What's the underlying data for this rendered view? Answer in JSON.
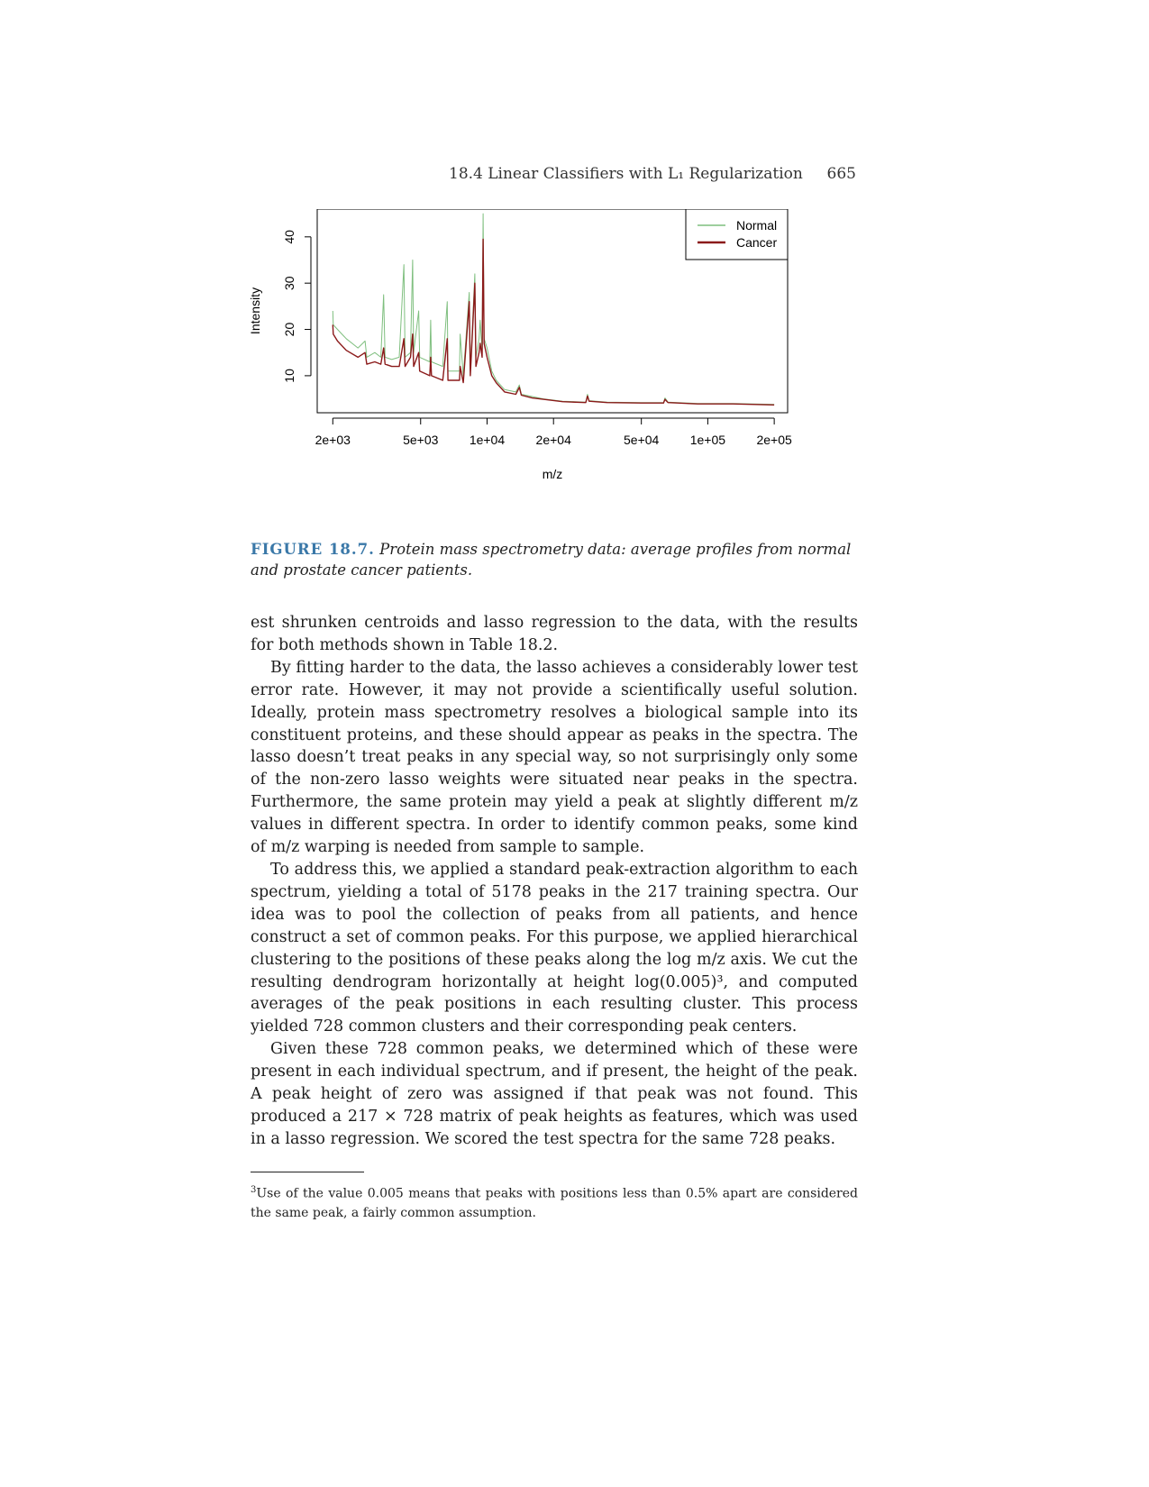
{
  "header": {
    "title": "18.4 Linear Classifiers with L₁ Regularization",
    "page_number": "665"
  },
  "chart_data": {
    "type": "line",
    "title": "",
    "xlabel": "m/z",
    "ylabel": "Intensity",
    "x_scale": "log",
    "x_ticks": [
      2000,
      5000,
      10000,
      20000,
      50000,
      100000,
      200000
    ],
    "x_tick_labels": [
      "2e+03",
      "5e+03",
      "1e+04",
      "2e+04",
      "5e+04",
      "1e+05",
      "2e+05"
    ],
    "y_ticks": [
      10,
      20,
      30,
      40
    ],
    "y_tick_labels": [
      "10",
      "20",
      "30",
      "40"
    ],
    "xlim": [
      1700,
      230000
    ],
    "ylim": [
      2,
      46
    ],
    "grid": false,
    "legend_position": "top-right",
    "series": [
      {
        "name": "Normal",
        "color": "#7fbf7f",
        "points": [
          [
            2000,
            24
          ],
          [
            2010,
            21
          ],
          [
            2100,
            20
          ],
          [
            2300,
            18
          ],
          [
            2600,
            16
          ],
          [
            2800,
            17.5
          ],
          [
            2850,
            14
          ],
          [
            3100,
            15
          ],
          [
            3300,
            14
          ],
          [
            3400,
            27.5
          ],
          [
            3450,
            14
          ],
          [
            3700,
            13.5
          ],
          [
            4000,
            14
          ],
          [
            4200,
            34
          ],
          [
            4250,
            14
          ],
          [
            4500,
            15
          ],
          [
            4600,
            35
          ],
          [
            4650,
            15
          ],
          [
            4900,
            24
          ],
          [
            4950,
            14
          ],
          [
            5500,
            13
          ],
          [
            5550,
            22
          ],
          [
            5600,
            13
          ],
          [
            6300,
            12
          ],
          [
            6600,
            26
          ],
          [
            6650,
            11
          ],
          [
            7500,
            11
          ],
          [
            7550,
            19
          ],
          [
            7800,
            10
          ],
          [
            8300,
            28
          ],
          [
            8400,
            11
          ],
          [
            8800,
            32
          ],
          [
            8900,
            14
          ],
          [
            9200,
            18
          ],
          [
            9300,
            22
          ],
          [
            9500,
            15
          ],
          [
            9600,
            45
          ],
          [
            9700,
            18
          ],
          [
            10000,
            16
          ],
          [
            10500,
            11
          ],
          [
            11000,
            9
          ],
          [
            12000,
            7
          ],
          [
            13500,
            6.5
          ],
          [
            14000,
            8
          ],
          [
            14300,
            6
          ],
          [
            16000,
            5.5
          ],
          [
            18000,
            5
          ],
          [
            22000,
            4.5
          ],
          [
            28000,
            4.3
          ],
          [
            28500,
            6
          ],
          [
            29000,
            4.6
          ],
          [
            35000,
            4.3
          ],
          [
            50000,
            4.2
          ],
          [
            63000,
            4.2
          ],
          [
            64000,
            5.2
          ],
          [
            66000,
            4.3
          ],
          [
            90000,
            4
          ],
          [
            130000,
            4
          ],
          [
            200000,
            3.8
          ]
        ]
      },
      {
        "name": "Cancer",
        "color": "#8b1a1a",
        "points": [
          [
            2000,
            21
          ],
          [
            2010,
            19
          ],
          [
            2100,
            17.5
          ],
          [
            2300,
            15.5
          ],
          [
            2600,
            14
          ],
          [
            2800,
            15
          ],
          [
            2850,
            12.5
          ],
          [
            3100,
            13
          ],
          [
            3300,
            12.5
          ],
          [
            3400,
            16
          ],
          [
            3450,
            12.5
          ],
          [
            3700,
            12
          ],
          [
            4000,
            12
          ],
          [
            4200,
            18
          ],
          [
            4250,
            12
          ],
          [
            4500,
            14
          ],
          [
            4600,
            19
          ],
          [
            4650,
            12
          ],
          [
            4900,
            15
          ],
          [
            4950,
            11
          ],
          [
            5500,
            10
          ],
          [
            5550,
            14
          ],
          [
            5600,
            10
          ],
          [
            6300,
            9
          ],
          [
            6600,
            18
          ],
          [
            6650,
            9
          ],
          [
            7500,
            9
          ],
          [
            7550,
            12
          ],
          [
            7800,
            8.5
          ],
          [
            8300,
            26
          ],
          [
            8400,
            10
          ],
          [
            8800,
            30
          ],
          [
            8900,
            12
          ],
          [
            9200,
            15
          ],
          [
            9300,
            17
          ],
          [
            9500,
            14
          ],
          [
            9600,
            39.5
          ],
          [
            9700,
            17
          ],
          [
            10000,
            14
          ],
          [
            10500,
            10
          ],
          [
            11000,
            8.5
          ],
          [
            12000,
            6.5
          ],
          [
            13500,
            6
          ],
          [
            14000,
            7.5
          ],
          [
            14300,
            5.8
          ],
          [
            16000,
            5.2
          ],
          [
            18000,
            4.9
          ],
          [
            22000,
            4.4
          ],
          [
            28000,
            4.2
          ],
          [
            28500,
            5.6
          ],
          [
            29000,
            4.5
          ],
          [
            35000,
            4.2
          ],
          [
            50000,
            4.1
          ],
          [
            63000,
            4.1
          ],
          [
            64000,
            4.9
          ],
          [
            66000,
            4.2
          ],
          [
            90000,
            3.9
          ],
          [
            130000,
            3.9
          ],
          [
            200000,
            3.7
          ]
        ]
      }
    ]
  },
  "figure": {
    "label": "FIGURE 18.7.",
    "caption": "Protein mass spectrometry data: average profiles from normal and prostate cancer patients."
  },
  "body": {
    "p1": "est shrunken centroids and lasso regression to the data, with the results for both methods shown in Table 18.2.",
    "p2": "By fitting harder to the data, the lasso achieves a considerably lower test error rate. However, it may not provide a scientifically useful solution. Ideally, protein mass spectrometry resolves a biological sample into its constituent proteins, and these should appear as peaks in the spectra. The lasso doesn’t treat peaks in any special way, so not surprisingly only some of the non-zero lasso weights were situated near peaks in the spectra. Furthermore, the same protein may yield a peak at slightly different m/z values in different spectra. In order to identify common peaks, some kind of m/z warping is needed from sample to sample.",
    "p3": "To address this, we applied a standard peak-extraction algorithm to each spectrum, yielding a total of 5178 peaks in the 217 training spectra. Our idea was to pool the collection of peaks from all patients, and hence construct a set of common peaks. For this purpose, we applied hierarchical clustering to the positions of these peaks along the log m/z axis. We cut the resulting dendrogram horizontally at height log(0.005)³, and computed averages of the peak positions in each resulting cluster. This process yielded 728 common clusters and their corresponding peak centers.",
    "p4": "Given these 728 common peaks, we determined which of these were present in each individual spectrum, and if present, the height of the peak. A peak height of zero was assigned if that peak was not found. This produced a 217 × 728 matrix of peak heights as features, which was used in a lasso regression. We scored the test spectra for the same 728 peaks."
  },
  "footnote": {
    "marker": "3",
    "text": "Use of the value 0.005 means that peaks with positions less than 0.5% apart are considered the same peak, a fairly common assumption."
  }
}
